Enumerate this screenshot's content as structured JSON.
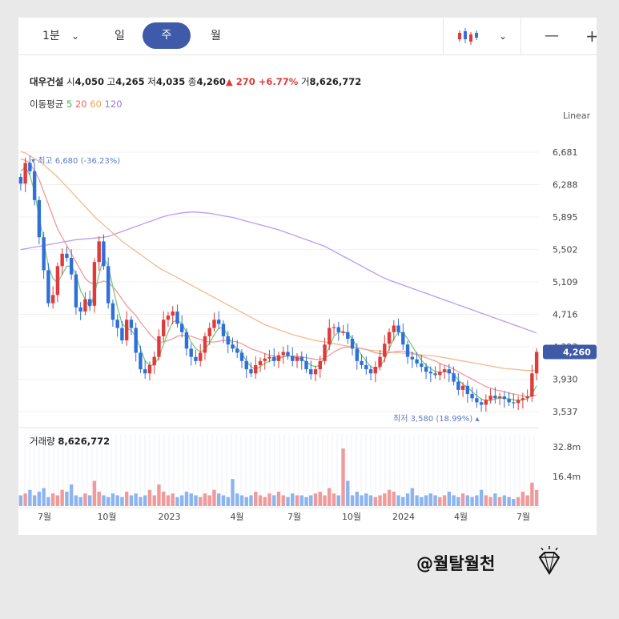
{
  "toolbar": {
    "interval": "1분",
    "tab_day": "일",
    "tab_week": "주",
    "tab_month": "월"
  },
  "stock": {
    "name": "대우건설",
    "open_label": "시",
    "open": "4,050",
    "high_label": "고",
    "high": "4,265",
    "low_label": "저",
    "low": "4,035",
    "close_label": "종",
    "close": "4,260",
    "change": "▲ 270 +6.77%",
    "volume_label": "거",
    "volume": "8,626,772"
  },
  "moving_average": {
    "label": "이동평균",
    "periods": [
      "5",
      "20",
      "60",
      "120"
    ],
    "colors": [
      "#4caf50",
      "#f06060",
      "#f0a050",
      "#a070e0"
    ]
  },
  "scale_label": "Linear",
  "annotations": {
    "max": "최고 6,680 (-36.23%)",
    "min": "최저 3,580 (18.99%)",
    "current_price": "4,260"
  },
  "volume_panel": {
    "label": "거래량",
    "value": "8,626,772",
    "ticks": [
      "32.8m",
      "16.4m"
    ]
  },
  "footer_text": "@월탈월천",
  "chart_data": {
    "type": "candlestick",
    "title": "",
    "ylim": [
      3537,
      6681
    ],
    "y_ticks": [
      "6,681",
      "6,288",
      "5,895",
      "5,502",
      "5,109",
      "4,716",
      "4,323",
      "3,930",
      "3,537"
    ],
    "x_ticks": [
      "7월",
      "10월",
      "2023",
      "4월",
      "7월",
      "10월",
      "2024",
      "4월",
      "7월"
    ],
    "close_series": [
      6300,
      6550,
      6450,
      6100,
      5650,
      5250,
      4850,
      4950,
      5300,
      5450,
      5400,
      5200,
      4800,
      4750,
      4900,
      4820,
      5350,
      5600,
      5300,
      4850,
      4650,
      4550,
      4400,
      4650,
      4550,
      4250,
      4050,
      4000,
      4100,
      4200,
      4450,
      4650,
      4700,
      4750,
      4600,
      4500,
      4300,
      4200,
      4150,
      4250,
      4450,
      4550,
      4650,
      4600,
      4450,
      4350,
      4300,
      4250,
      4150,
      4050,
      4000,
      4100,
      4150,
      4180,
      4200,
      4150,
      4220,
      4260,
      4210,
      4150,
      4200,
      4150,
      4050,
      3990,
      4050,
      4150,
      4350,
      4550,
      4560,
      4500,
      4500,
      4420,
      4300,
      4150,
      4100,
      4050,
      4000,
      4080,
      4200,
      4360,
      4500,
      4580,
      4500,
      4350,
      4200,
      4170,
      4120,
      4080,
      4020,
      4000,
      3980,
      4020,
      4050,
      4000,
      3900,
      3800,
      3850,
      3750,
      3700,
      3650,
      3620,
      3680,
      3730,
      3700,
      3720,
      3690,
      3650,
      3640,
      3680,
      3700,
      3720,
      4000,
      4260
    ],
    "ma5": [
      6450,
      6500,
      6400,
      6200,
      5900,
      5600,
      5300,
      5150,
      5100,
      5200,
      5300,
      5300,
      5200,
      5000,
      4900,
      4800,
      4950,
      5200,
      5400,
      5300,
      5050,
      4800,
      4600,
      4550,
      4520,
      4450,
      4300,
      4150,
      4100,
      4100,
      4200,
      4350,
      4500,
      4620,
      4650,
      4600,
      4500,
      4380,
      4300,
      4260,
      4290,
      4370,
      4470,
      4550,
      4550,
      4450,
      4350,
      4300,
      4250,
      4150,
      4080,
      4050,
      4080,
      4120,
      4150,
      4170,
      4180,
      4200,
      4220,
      4200,
      4190,
      4170,
      4140,
      4100,
      4080,
      4100,
      4200,
      4320,
      4450,
      4500,
      4510,
      4480,
      4420,
      4320,
      4220,
      4150,
      4080,
      4050,
      4080,
      4170,
      4300,
      4420,
      4500,
      4490,
      4420,
      4330,
      4240,
      4160,
      4100,
      4060,
      4020,
      4010,
      4020,
      4020,
      3990,
      3920,
      3870,
      3830,
      3780,
      3730,
      3690,
      3670,
      3670,
      3690,
      3700,
      3700,
      3690,
      3680,
      3670,
      3680,
      3690,
      3750,
      3850
    ],
    "ma20": [
      6600,
      6580,
      6550,
      6450,
      6350,
      6200,
      6050,
      5900,
      5750,
      5650,
      5550,
      5450,
      5350,
      5250,
      5150,
      5100,
      5080,
      5100,
      5120,
      5100,
      5050,
      4980,
      4900,
      4820,
      4760,
      4700,
      4620,
      4550,
      4480,
      4420,
      4380,
      4380,
      4400,
      4420,
      4450,
      4460,
      4460,
      4450,
      4430,
      4410,
      4390,
      4380,
      4380,
      4390,
      4400,
      4400,
      4390,
      4380,
      4360,
      4330,
      4300,
      4280,
      4260,
      4240,
      4220,
      4210,
      4200,
      4200,
      4210,
      4210,
      4210,
      4200,
      4190,
      4180,
      4170,
      4170,
      4190,
      4220,
      4260,
      4290,
      4310,
      4320,
      4320,
      4310,
      4300,
      4290,
      4270,
      4250,
      4240,
      4240,
      4250,
      4260,
      4270,
      4270,
      4260,
      4250,
      4230,
      4210,
      4190,
      4170,
      4150,
      4120,
      4100,
      4080,
      4050,
      4020,
      3990,
      3960,
      3930,
      3900,
      3870,
      3840,
      3820,
      3800,
      3790,
      3780,
      3760,
      3750,
      3740,
      3730,
      3720,
      3720,
      3740
    ],
    "ma60": [
      6690,
      6670,
      6640,
      6600,
      6570,
      6530,
      6480,
      6430,
      6380,
      6320,
      6260,
      6200,
      6140,
      6080,
      6020,
      5960,
      5900,
      5850,
      5800,
      5750,
      5700,
      5650,
      5600,
      5560,
      5520,
      5480,
      5440,
      5400,
      5360,
      5320,
      5280,
      5250,
      5220,
      5190,
      5160,
      5130,
      5100,
      5070,
      5040,
      5010,
      4980,
      4950,
      4920,
      4890,
      4860,
      4830,
      4800,
      4770,
      4740,
      4710,
      4680,
      4650,
      4620,
      4590,
      4570,
      4550,
      4530,
      4510,
      4490,
      4470,
      4455,
      4440,
      4425,
      4410,
      4400,
      4390,
      4380,
      4370,
      4360,
      4350,
      4340,
      4330,
      4320,
      4310,
      4300,
      4290,
      4280,
      4275,
      4270,
      4265,
      4260,
      4255,
      4250,
      4245,
      4240,
      4235,
      4230,
      4225,
      4220,
      4215,
      4210,
      4200,
      4190,
      4180,
      4170,
      4160,
      4150,
      4140,
      4130,
      4120,
      4110,
      4100,
      4090,
      4080,
      4070,
      4060,
      4055,
      4050,
      4045,
      4040,
      4035,
      4035,
      4040
    ],
    "ma120": [
      5500,
      5510,
      5520,
      5530,
      5540,
      5550,
      5560,
      5570,
      5580,
      5590,
      5600,
      5610,
      5620,
      5625,
      5630,
      5635,
      5640,
      5645,
      5650,
      5660,
      5680,
      5700,
      5720,
      5740,
      5760,
      5780,
      5800,
      5820,
      5840,
      5860,
      5880,
      5900,
      5915,
      5925,
      5935,
      5945,
      5950,
      5955,
      5955,
      5950,
      5945,
      5940,
      5930,
      5920,
      5910,
      5900,
      5890,
      5875,
      5860,
      5845,
      5830,
      5815,
      5800,
      5785,
      5770,
      5755,
      5740,
      5720,
      5700,
      5680,
      5660,
      5640,
      5620,
      5600,
      5580,
      5560,
      5540,
      5510,
      5480,
      5450,
      5420,
      5390,
      5360,
      5330,
      5300,
      5270,
      5240,
      5210,
      5180,
      5155,
      5130,
      5110,
      5090,
      5070,
      5050,
      5030,
      5010,
      4990,
      4970,
      4950,
      4930,
      4910,
      4890,
      4870,
      4850,
      4830,
      4810,
      4790,
      4770,
      4750,
      4730,
      4710,
      4690,
      4670,
      4650,
      4630,
      4610,
      4590,
      4570,
      4550,
      4530,
      4510,
      4490
    ],
    "volume_m": [
      6,
      7,
      9,
      6,
      8,
      10,
      5,
      7,
      6,
      9,
      8,
      12,
      6,
      5,
      7,
      6,
      14,
      8,
      6,
      5,
      7,
      6,
      5,
      8,
      6,
      7,
      5,
      6,
      9,
      6,
      12,
      8,
      6,
      7,
      5,
      6,
      8,
      7,
      6,
      5,
      7,
      6,
      9,
      7,
      6,
      5,
      15,
      7,
      6,
      5,
      6,
      8,
      6,
      5,
      7,
      6,
      8,
      6,
      5,
      7,
      6,
      6,
      5,
      6,
      7,
      8,
      6,
      10,
      7,
      6,
      32,
      14,
      6,
      8,
      6,
      7,
      6,
      5,
      6,
      7,
      9,
      8,
      6,
      5,
      7,
      10,
      6,
      5,
      6,
      7,
      6,
      5,
      6,
      8,
      6,
      5,
      7,
      6,
      5,
      6,
      9,
      6,
      5,
      7,
      5,
      6,
      5,
      4,
      5,
      8,
      6,
      13,
      9
    ]
  }
}
